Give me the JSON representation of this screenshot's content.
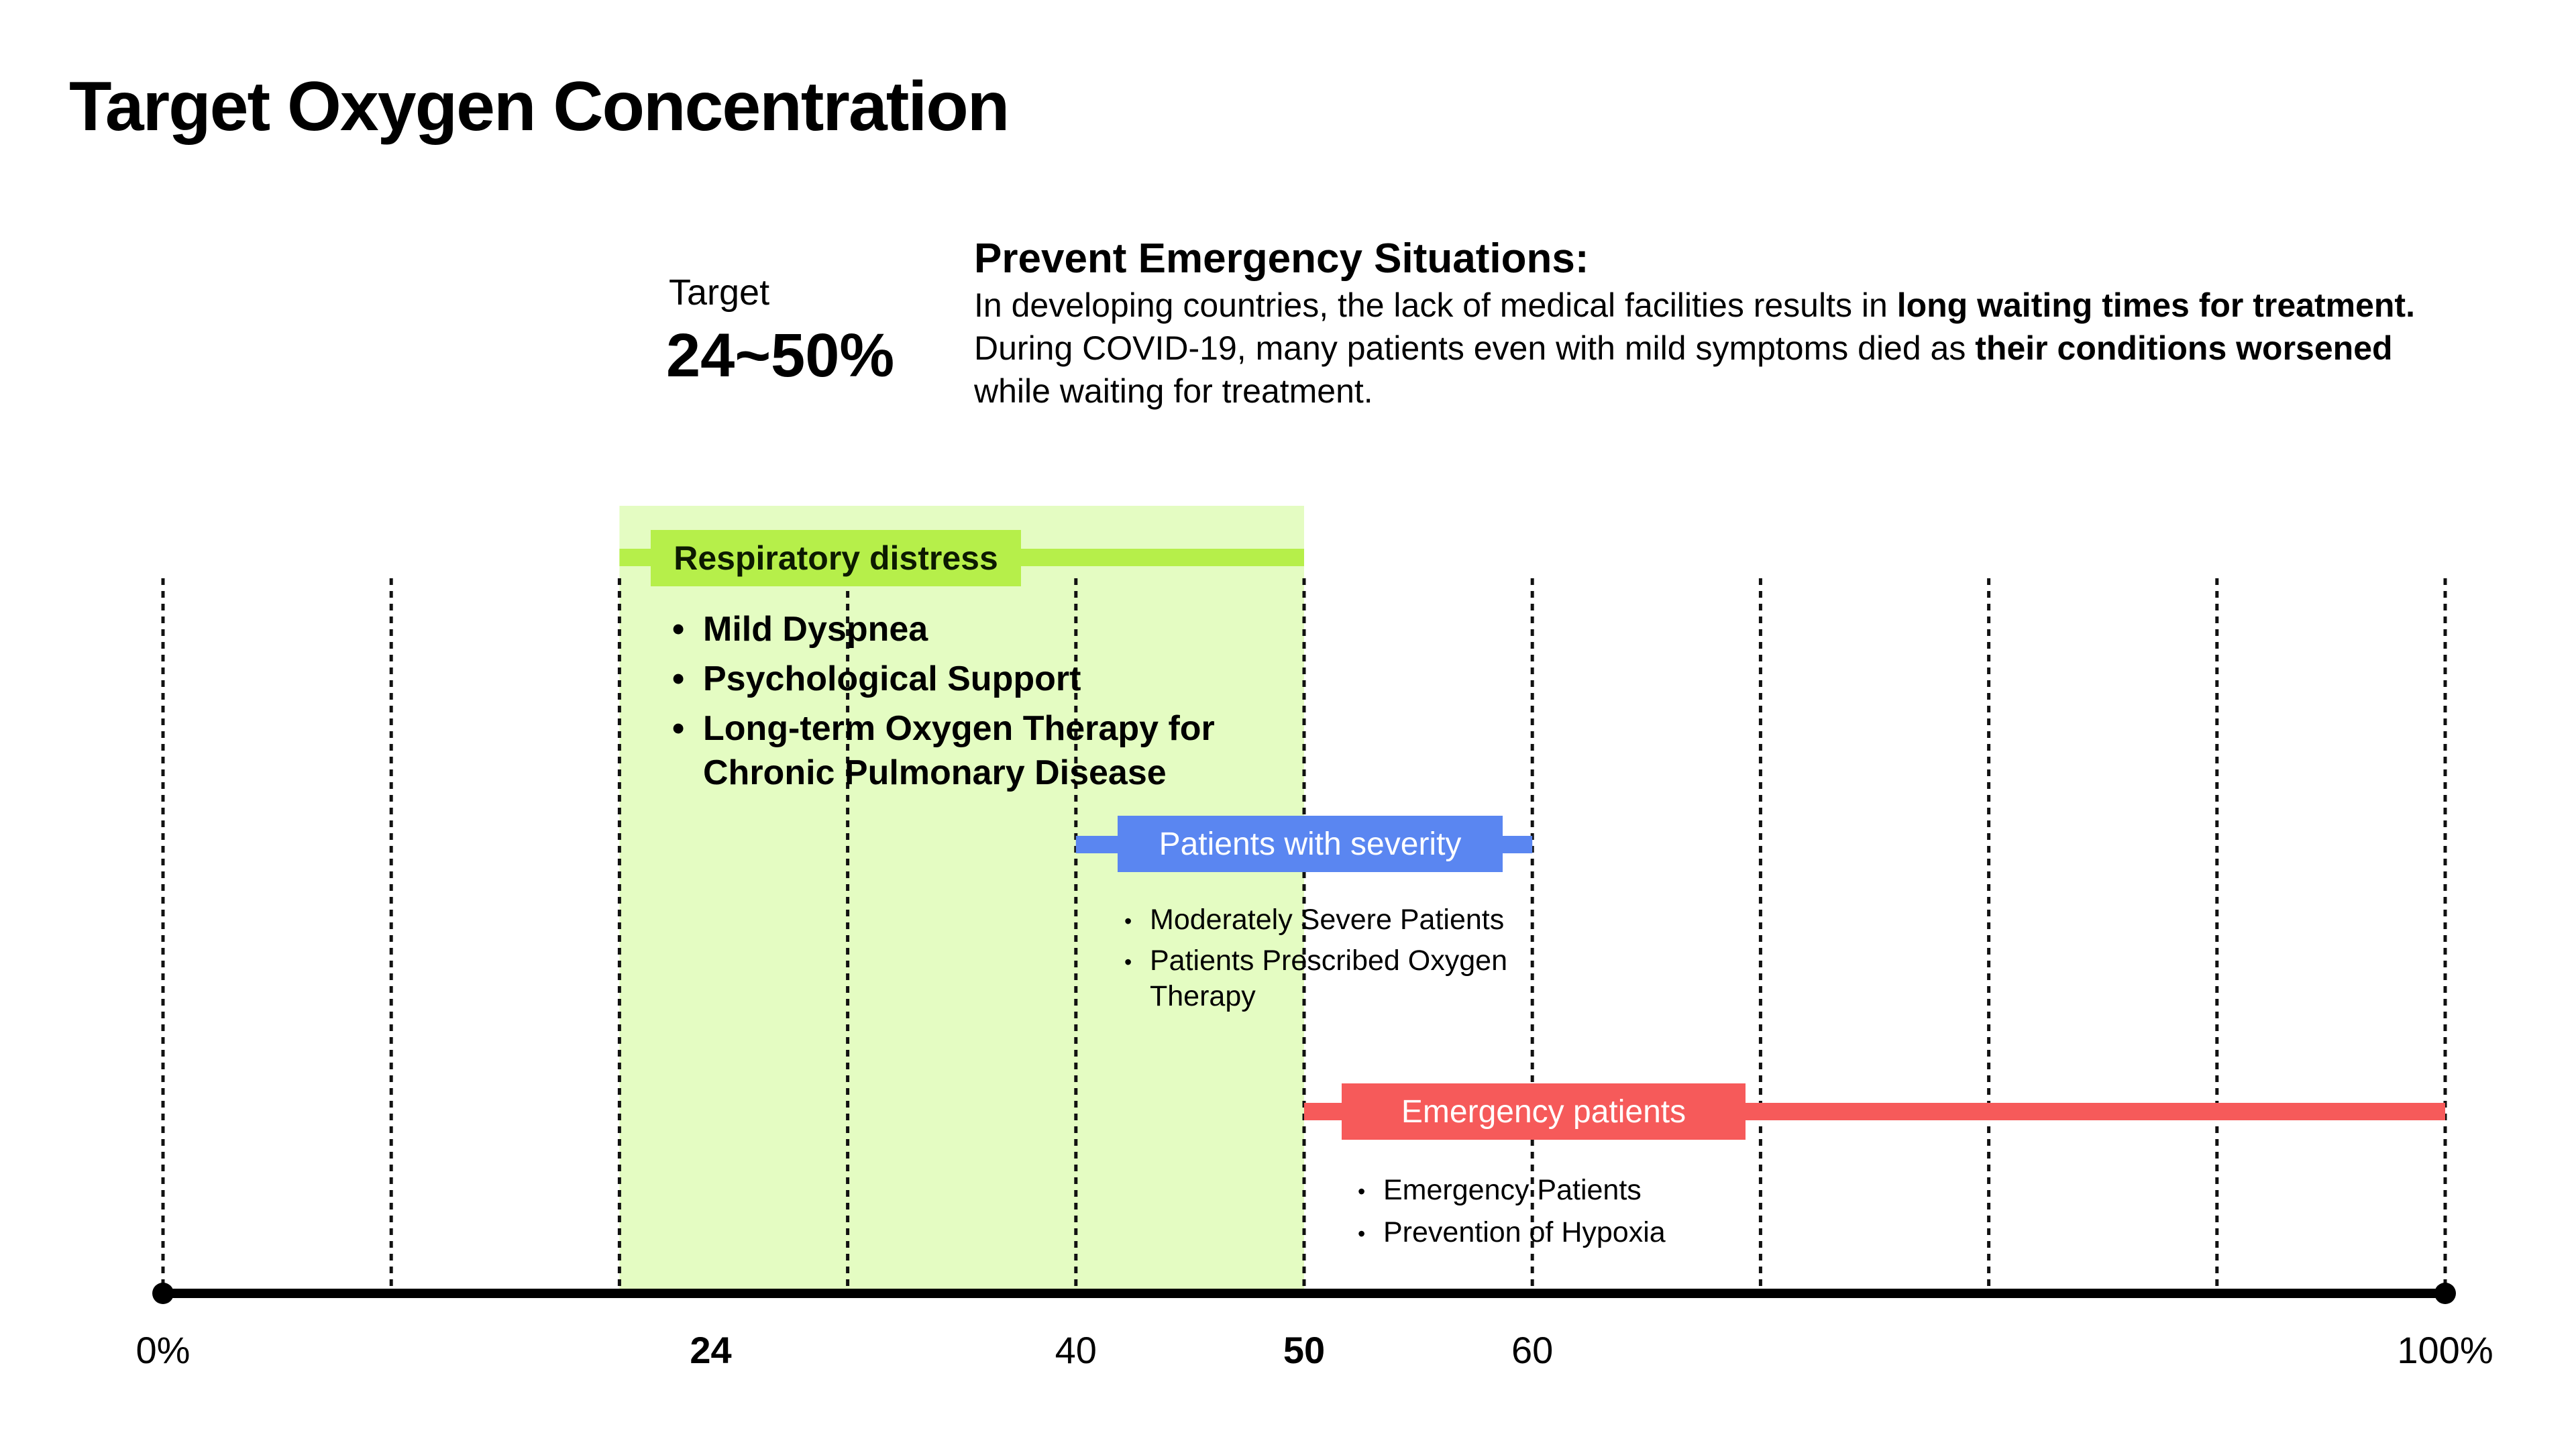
{
  "title": "Target Oxygen Concentration",
  "target": {
    "label": "Target",
    "value": "24~50%"
  },
  "callout": {
    "heading": "Prevent Emergency Situations:",
    "line1_plain": "In developing countries, the lack of medical facilities results in ",
    "line1_bold": "long waiting times for treatment.",
    "line2_plain": "During COVID-19, many patients even with mild symptoms died as ",
    "line2_bold": "their conditions worsened",
    "line3_plain": "while waiting for treatment."
  },
  "axis": {
    "min": 0,
    "max": 100,
    "tick_labels": [
      {
        "value": 0,
        "label": "0%",
        "bold": false
      },
      {
        "value": 24,
        "label": "24",
        "bold": true
      },
      {
        "value": 40,
        "label": "40",
        "bold": false
      },
      {
        "value": 50,
        "label": "50",
        "bold": true
      },
      {
        "value": 60,
        "label": "60",
        "bold": false
      },
      {
        "value": 100,
        "label": "100%",
        "bold": false
      }
    ],
    "gridlines": [
      0,
      10,
      20,
      30,
      40,
      50,
      60,
      70,
      80,
      90,
      100
    ]
  },
  "highlight": {
    "from": 20,
    "to": 50,
    "color": "#e4fcc2"
  },
  "bands": [
    {
      "id": "respiratory",
      "label": "Respiratory distress",
      "from": 20,
      "to": 50,
      "color": "#b6ef4a",
      "items": [
        "Mild Dyspnea",
        "Psychological Support",
        "Long-term Oxygen Therapy for Chronic Pulmonary Disease"
      ]
    },
    {
      "id": "severity",
      "label": "Patients with severity",
      "from": 40,
      "to": 60,
      "color": "#5a86f1",
      "items": [
        "Moderately Severe Patients",
        "Patients Prescribed Oxygen Therapy"
      ]
    },
    {
      "id": "emergency",
      "label": "Emergency patients",
      "from": 50,
      "to": 100,
      "color": "#f65a5a",
      "items": [
        "Emergency Patients",
        "Prevention of Hypoxia"
      ]
    }
  ]
}
